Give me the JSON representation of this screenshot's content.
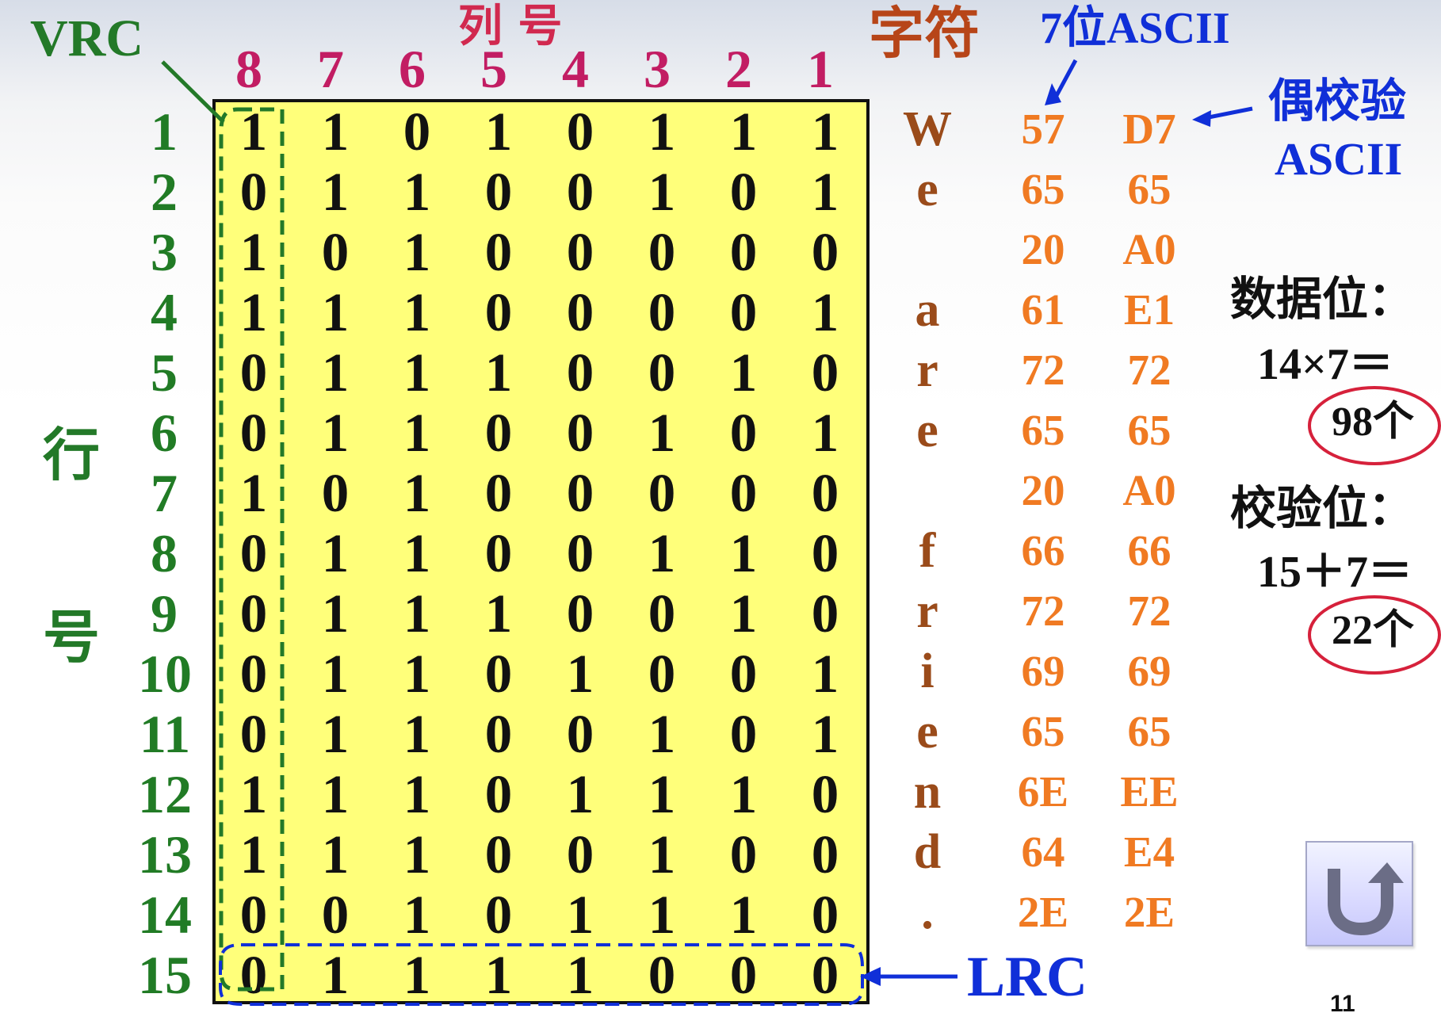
{
  "labels": {
    "vrc": "VRC",
    "column_heading": "列 号",
    "character_heading": "字符",
    "ascii7_heading": "7位ASCII",
    "even_parity_line1": "偶校验",
    "even_parity_line2": "ASCII",
    "row_heading_top": "行",
    "row_heading_bottom": "号",
    "data_bits_title": "数据位：",
    "data_bits_formula": "14×7＝",
    "data_bits_result": "98个",
    "check_bits_title": "校验位：",
    "check_bits_formula": "15＋7＝",
    "check_bits_result": "22个",
    "lrc": "LRC",
    "page_number": "11"
  },
  "icons": {
    "return_button": "return-arrow-icon"
  },
  "columns": [
    "8",
    "7",
    "6",
    "5",
    "4",
    "3",
    "2",
    "1"
  ],
  "rows": [
    {
      "row": "1",
      "bits": [
        "1",
        "1",
        "0",
        "1",
        "0",
        "1",
        "1",
        "1"
      ],
      "char": "W",
      "ascii7": "57",
      "even": "D7"
    },
    {
      "row": "2",
      "bits": [
        "0",
        "1",
        "1",
        "0",
        "0",
        "1",
        "0",
        "1"
      ],
      "char": "e",
      "ascii7": "65",
      "even": "65"
    },
    {
      "row": "3",
      "bits": [
        "1",
        "0",
        "1",
        "0",
        "0",
        "0",
        "0",
        "0"
      ],
      "char": "",
      "ascii7": "20",
      "even": "A0"
    },
    {
      "row": "4",
      "bits": [
        "1",
        "1",
        "1",
        "0",
        "0",
        "0",
        "0",
        "1"
      ],
      "char": "a",
      "ascii7": "61",
      "even": "E1"
    },
    {
      "row": "5",
      "bits": [
        "0",
        "1",
        "1",
        "1",
        "0",
        "0",
        "1",
        "0"
      ],
      "char": "r",
      "ascii7": "72",
      "even": "72"
    },
    {
      "row": "6",
      "bits": [
        "0",
        "1",
        "1",
        "0",
        "0",
        "1",
        "0",
        "1"
      ],
      "char": "e",
      "ascii7": "65",
      "even": "65"
    },
    {
      "row": "7",
      "bits": [
        "1",
        "0",
        "1",
        "0",
        "0",
        "0",
        "0",
        "0"
      ],
      "char": "",
      "ascii7": "20",
      "even": "A0"
    },
    {
      "row": "8",
      "bits": [
        "0",
        "1",
        "1",
        "0",
        "0",
        "1",
        "1",
        "0"
      ],
      "char": "f",
      "ascii7": "66",
      "even": "66"
    },
    {
      "row": "9",
      "bits": [
        "0",
        "1",
        "1",
        "1",
        "0",
        "0",
        "1",
        "0"
      ],
      "char": "r",
      "ascii7": "72",
      "even": "72"
    },
    {
      "row": "10",
      "bits": [
        "0",
        "1",
        "1",
        "0",
        "1",
        "0",
        "0",
        "1"
      ],
      "char": "i",
      "ascii7": "69",
      "even": "69"
    },
    {
      "row": "11",
      "bits": [
        "0",
        "1",
        "1",
        "0",
        "0",
        "1",
        "0",
        "1"
      ],
      "char": "e",
      "ascii7": "65",
      "even": "65"
    },
    {
      "row": "12",
      "bits": [
        "1",
        "1",
        "1",
        "0",
        "1",
        "1",
        "1",
        "0"
      ],
      "char": "n",
      "ascii7": "6E",
      "even": "EE"
    },
    {
      "row": "13",
      "bits": [
        "1",
        "1",
        "1",
        "0",
        "0",
        "1",
        "0",
        "0"
      ],
      "char": "d",
      "ascii7": "64",
      "even": "E4"
    },
    {
      "row": "14",
      "bits": [
        "0",
        "0",
        "1",
        "0",
        "1",
        "1",
        "1",
        "0"
      ],
      "char": ".",
      "ascii7": "2E",
      "even": "2E"
    },
    {
      "row": "15",
      "bits": [
        "0",
        "1",
        "1",
        "1",
        "1",
        "0",
        "0",
        "0"
      ],
      "char": "",
      "ascii7": "",
      "even": ""
    }
  ]
}
